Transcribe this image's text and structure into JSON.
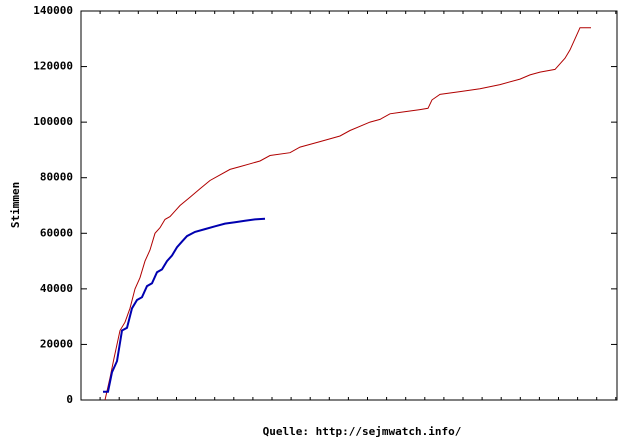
{
  "chart_data": {
    "type": "line",
    "ylabel": "Stimmen",
    "xlabel": "Quelle: http://sejmwatch.info/",
    "xlim": [
      0,
      536
    ],
    "ylim": [
      0,
      140000
    ],
    "yticks": [
      0,
      20000,
      40000,
      60000,
      80000,
      100000,
      120000,
      140000
    ],
    "series": [
      {
        "color": "#b00000",
        "x": [
          24,
          29,
          33,
          39,
          44,
          49,
          54,
          59,
          64,
          69,
          74,
          79,
          84,
          89,
          94,
          99,
          109,
          119,
          129,
          139,
          149,
          159,
          169,
          179,
          189,
          209,
          219,
          239,
          259,
          269,
          289,
          299,
          309,
          319,
          339,
          347,
          351,
          359,
          379,
          399,
          419,
          439,
          449,
          459,
          474,
          479,
          484,
          489,
          494,
          499,
          510
        ],
        "values": [
          0,
          8000,
          15000,
          25000,
          28000,
          33000,
          40000,
          44000,
          50000,
          54000,
          60000,
          62000,
          65000,
          66000,
          68000,
          70000,
          73000,
          76000,
          79000,
          81000,
          83000,
          84000,
          85000,
          86000,
          88000,
          89000,
          91000,
          93000,
          95000,
          97000,
          100000,
          101000,
          103000,
          103500,
          104500,
          105000,
          108000,
          110000,
          111000,
          112000,
          113500,
          115500,
          117000,
          118000,
          119000,
          121000,
          123000,
          126000,
          130000,
          134000,
          134000
        ]
      },
      {
        "color": "#0000b0",
        "x": [
          22,
          27,
          31,
          36,
          41,
          46,
          51,
          56,
          61,
          66,
          71,
          76,
          81,
          86,
          91,
          96,
          101,
          106,
          114,
          124,
          134,
          144,
          154,
          164,
          174,
          184
        ],
        "values": [
          3000,
          3000,
          10000,
          14000,
          25000,
          26000,
          33000,
          36000,
          37000,
          41000,
          42000,
          46000,
          47000,
          50000,
          52000,
          55000,
          57000,
          59000,
          60500,
          61500,
          62500,
          63500,
          64000,
          64500,
          65000,
          65200
        ]
      }
    ]
  }
}
